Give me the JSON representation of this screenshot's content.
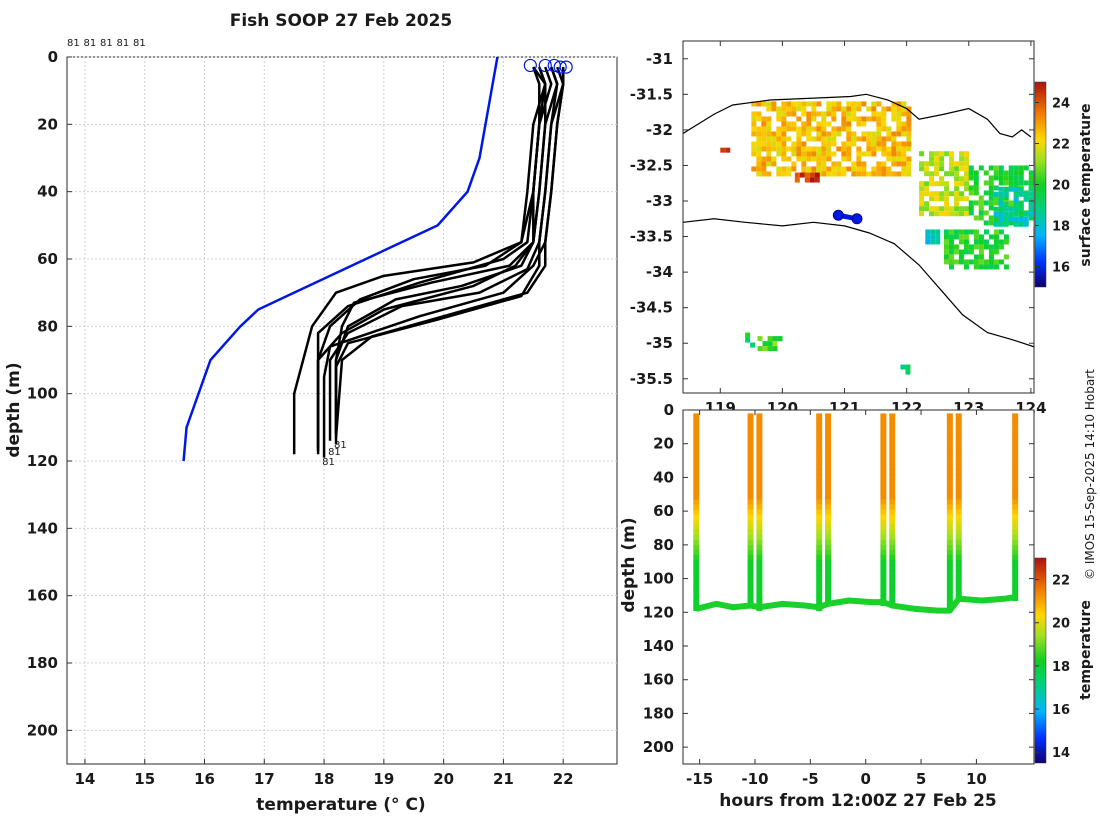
{
  "figure": {
    "title": "Fish SOOP 27 Feb 2025",
    "credit": "© IMOS 15-Sep-2025 14:10 Hobart",
    "top_labels": [
      "81",
      "81",
      "81",
      "81",
      "81"
    ]
  },
  "chart_data": [
    {
      "type": "line",
      "name": "profile",
      "xlabel": "temperature (° C)",
      "ylabel": "depth (m)",
      "xlim": [
        13.7,
        22.9
      ],
      "ylim": [
        210,
        0
      ],
      "y_reversed": true,
      "xticks": [
        14,
        15,
        16,
        17,
        18,
        19,
        20,
        21,
        22
      ],
      "yticks": [
        0,
        20,
        40,
        60,
        80,
        100,
        120,
        140,
        160,
        180,
        200
      ],
      "grid": true,
      "colors": {
        "climatology": "#0018e6",
        "profiles": "#000000"
      },
      "climatology": {
        "x": [
          20.9,
          20.8,
          20.6,
          20.4,
          19.9,
          18.7,
          17.5,
          16.9,
          16.6,
          16.1,
          15.7,
          15.65
        ],
        "y": [
          0,
          10,
          30,
          40,
          50,
          60,
          70,
          75,
          80,
          90,
          110,
          120
        ]
      },
      "profiles": [
        {
          "x": [
            21.7,
            21.8,
            21.6,
            21.5,
            21.5,
            21.3,
            20.3,
            19.2,
            18.4,
            18.2,
            18.2
          ],
          "y": [
            3,
            8,
            20,
            40,
            55,
            62,
            68,
            72,
            80,
            90,
            112
          ]
        },
        {
          "x": [
            21.6,
            21.7,
            21.7,
            21.6,
            21.5,
            21.1,
            19.8,
            18.5,
            18.3,
            18.2,
            18.2
          ],
          "y": [
            3,
            8,
            20,
            40,
            55,
            62,
            67,
            73,
            80,
            90,
            115
          ]
        },
        {
          "x": [
            21.8,
            21.9,
            21.8,
            21.7,
            21.6,
            21.4,
            20.6,
            19.3,
            18.4,
            18.1,
            18.1
          ],
          "y": [
            3,
            8,
            20,
            40,
            55,
            63,
            70,
            74,
            82,
            90,
            114
          ]
        },
        {
          "x": [
            21.5,
            21.6,
            21.6,
            21.5,
            21.3,
            20.7,
            19.5,
            18.6,
            18.1,
            17.9,
            17.9
          ],
          "y": [
            3,
            8,
            20,
            40,
            55,
            62,
            66,
            72,
            80,
            90,
            116
          ]
        },
        {
          "x": [
            22.0,
            22.0,
            21.9,
            21.8,
            21.7,
            21.7,
            21.4,
            20.2,
            18.8,
            18.3,
            18.2
          ],
          "y": [
            3,
            8,
            20,
            40,
            55,
            62,
            70,
            76,
            83,
            90,
            113
          ]
        },
        {
          "x": [
            21.9,
            22.0,
            21.8,
            21.7,
            21.6,
            21.6,
            21.3,
            19.9,
            18.4,
            18.2,
            18.2
          ],
          "y": [
            3,
            8,
            20,
            40,
            55,
            62,
            71,
            78,
            85,
            92,
            112
          ]
        },
        {
          "x": [
            21.6,
            21.7,
            21.6,
            21.5,
            21.4,
            21.0,
            19.6,
            18.4,
            17.9,
            17.9,
            17.9
          ],
          "y": [
            3,
            8,
            20,
            40,
            55,
            60,
            67,
            74,
            82,
            92,
            117
          ]
        },
        {
          "x": [
            21.8,
            21.9,
            21.7,
            21.6,
            21.5,
            21.2,
            20.5,
            19.0,
            18.3,
            17.9,
            17.9
          ],
          "y": [
            3,
            8,
            20,
            40,
            55,
            62,
            68,
            75,
            82,
            90,
            118
          ]
        },
        {
          "x": [
            22.0,
            22.0,
            21.9,
            21.8,
            21.7,
            21.5,
            21.0,
            19.6,
            18.1,
            18.0,
            18.0
          ],
          "y": [
            3,
            8,
            20,
            40,
            55,
            62,
            70,
            77,
            86,
            95,
            119
          ]
        },
        {
          "x": [
            21.5,
            21.7,
            21.5,
            21.4,
            21.3,
            20.5,
            19.0,
            18.2,
            17.8,
            17.5,
            17.5
          ],
          "y": [
            3,
            8,
            20,
            40,
            55,
            61,
            65,
            70,
            80,
            100,
            118
          ]
        }
      ],
      "start_markers": [
        {
          "x": 21.45,
          "y": 2.5
        },
        {
          "x": 21.7,
          "y": 2.5
        },
        {
          "x": 21.85,
          "y": 2.5
        },
        {
          "x": 21.95,
          "y": 3
        },
        {
          "x": 22.05,
          "y": 3
        }
      ],
      "end_labels": [
        {
          "x": 18.1,
          "y": 115,
          "text": "81"
        },
        {
          "x": 18.0,
          "y": 117,
          "text": "81"
        },
        {
          "x": 17.9,
          "y": 120,
          "text": "81"
        }
      ]
    },
    {
      "type": "heatmap",
      "name": "map",
      "xlim": [
        118.4,
        124.05
      ],
      "ylim": [
        -35.7,
        -30.75
      ],
      "xticks": [
        119,
        120,
        121,
        122,
        123,
        124
      ],
      "yticks": [
        -31,
        -31.5,
        -32,
        -32.5,
        -33,
        -33.5,
        -34,
        -34.5,
        -35,
        -35.5
      ],
      "colorbar": {
        "label": "surface temperature",
        "range": [
          15,
          25
        ],
        "ticks": [
          16,
          18,
          20,
          22,
          24
        ]
      },
      "coastline_north": [
        [
          118.4,
          -32.05
        ],
        [
          118.9,
          -31.78
        ],
        [
          119.2,
          -31.65
        ],
        [
          119.8,
          -31.58
        ],
        [
          120.6,
          -31.55
        ],
        [
          121.1,
          -31.53
        ],
        [
          121.35,
          -31.5
        ],
        [
          121.7,
          -31.58
        ],
        [
          122.0,
          -31.7
        ],
        [
          122.2,
          -31.85
        ],
        [
          122.6,
          -31.78
        ],
        [
          123.0,
          -31.7
        ],
        [
          123.3,
          -31.85
        ],
        [
          123.5,
          -32.05
        ],
        [
          123.7,
          -32.1
        ],
        [
          123.85,
          -32.0
        ],
        [
          124.0,
          -32.1
        ]
      ],
      "coastline_south": [
        [
          118.4,
          -33.3
        ],
        [
          118.9,
          -33.25
        ],
        [
          119.4,
          -33.3
        ],
        [
          120.0,
          -33.35
        ],
        [
          120.5,
          -33.3
        ],
        [
          121.0,
          -33.35
        ],
        [
          121.4,
          -33.45
        ],
        [
          121.8,
          -33.6
        ],
        [
          122.2,
          -33.9
        ],
        [
          122.6,
          -34.3
        ],
        [
          122.9,
          -34.6
        ],
        [
          123.3,
          -34.85
        ],
        [
          123.7,
          -34.95
        ],
        [
          124.05,
          -35.05
        ]
      ],
      "track": [
        [
          120.9,
          -33.2
        ],
        [
          121.2,
          -33.25
        ]
      ],
      "temperature_patches": [
        {
          "lon": [
            119.5,
            122.0
          ],
          "lat": [
            -32.6,
            -31.6
          ],
          "temp": 22.5
        },
        {
          "lon": [
            120.2,
            120.6
          ],
          "lat": [
            -32.7,
            -32.6
          ],
          "temp": 24.5
        },
        {
          "lon": [
            119.0,
            119.1
          ],
          "lat": [
            -32.3,
            -32.25
          ],
          "temp": 24.5
        },
        {
          "lon": [
            122.2,
            123.0
          ],
          "lat": [
            -33.2,
            -32.3
          ],
          "temp": 21.5
        },
        {
          "lon": [
            123.0,
            124.05
          ],
          "lat": [
            -33.3,
            -32.5
          ],
          "temp": 20.0
        },
        {
          "lon": [
            123.4,
            124.05
          ],
          "lat": [
            -33.3,
            -32.8
          ],
          "temp": 18.5
        },
        {
          "lon": [
            122.6,
            123.6
          ],
          "lat": [
            -33.9,
            -33.4
          ],
          "temp": 20.0
        },
        {
          "lon": [
            122.3,
            122.5
          ],
          "lat": [
            -33.6,
            -33.4
          ],
          "temp": 18.0
        },
        {
          "lon": [
            119.6,
            120.0
          ],
          "lat": [
            -35.1,
            -34.9
          ],
          "temp": 20.5
        },
        {
          "lon": [
            119.4,
            119.5
          ],
          "lat": [
            -35.05,
            -34.85
          ],
          "temp": 19.5
        },
        {
          "lon": [
            121.9,
            122.0
          ],
          "lat": [
            -35.4,
            -35.3
          ],
          "temp": 18.5
        }
      ]
    },
    {
      "type": "scatter",
      "name": "section",
      "xlabel": "hours from 12:00Z 27 Feb 25",
      "ylabel": "depth (m)",
      "xlim": [
        -16.5,
        15.2
      ],
      "ylim": [
        210,
        0
      ],
      "xticks": [
        -15,
        -10,
        -5,
        0,
        5,
        10
      ],
      "yticks": [
        0,
        20,
        40,
        60,
        80,
        100,
        120,
        140,
        160,
        180,
        200
      ],
      "colorbar": {
        "label": "temperature",
        "range": [
          13.5,
          23
        ],
        "ticks": [
          14,
          16,
          18,
          20,
          22
        ]
      },
      "casts": [
        {
          "time": -15.3,
          "bottom": 118
        },
        {
          "time": -10.4,
          "bottom": 116
        },
        {
          "time": -9.6,
          "bottom": 117
        },
        {
          "time": -4.2,
          "bottom": 117
        },
        {
          "time": -3.4,
          "bottom": 115
        },
        {
          "time": 1.6,
          "bottom": 114
        },
        {
          "time": 2.4,
          "bottom": 116
        },
        {
          "time": 7.6,
          "bottom": 119
        },
        {
          "time": 8.4,
          "bottom": 112
        },
        {
          "time": 13.5,
          "bottom": 111
        }
      ],
      "bottom_track": [
        {
          "x": -15.3,
          "y": 118
        },
        {
          "x": -13.5,
          "y": 115
        },
        {
          "x": -12.0,
          "y": 117
        },
        {
          "x": -10.4,
          "y": 116
        },
        {
          "x": -9.6,
          "y": 117
        },
        {
          "x": -7.5,
          "y": 115
        },
        {
          "x": -5.5,
          "y": 116
        },
        {
          "x": -4.2,
          "y": 117
        },
        {
          "x": -3.4,
          "y": 115
        },
        {
          "x": -1.5,
          "y": 113
        },
        {
          "x": 0.5,
          "y": 114
        },
        {
          "x": 1.6,
          "y": 114
        },
        {
          "x": 2.4,
          "y": 116
        },
        {
          "x": 4.5,
          "y": 118
        },
        {
          "x": 6.5,
          "y": 119
        },
        {
          "x": 7.6,
          "y": 119
        },
        {
          "x": 8.4,
          "y": 112
        },
        {
          "x": 10.5,
          "y": 113
        },
        {
          "x": 12.5,
          "y": 112
        },
        {
          "x": 13.5,
          "y": 111
        }
      ]
    }
  ]
}
